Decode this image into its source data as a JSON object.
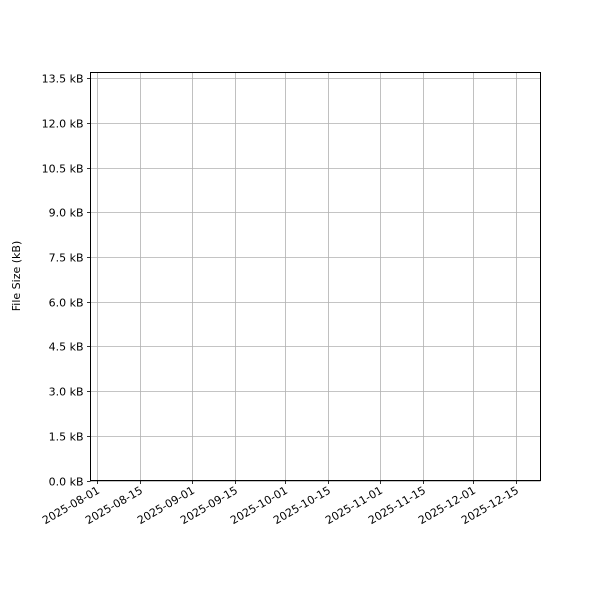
{
  "chart_data": {
    "type": "line",
    "title": "",
    "xlabel": "",
    "ylabel": "File Size (kB)",
    "x_type": "date",
    "xlim": [
      "2025-07-30",
      "2025-12-23"
    ],
    "ylim": [
      0,
      13.7
    ],
    "x_ticks": [
      "2025-08-01",
      "2025-08-15",
      "2025-09-01",
      "2025-09-15",
      "2025-10-01",
      "2025-10-15",
      "2025-11-01",
      "2025-11-15",
      "2025-12-01",
      "2025-12-15"
    ],
    "y_ticks": [
      0,
      1.5,
      3.0,
      4.5,
      6.0,
      7.5,
      9.0,
      10.5,
      12.0,
      13.5
    ],
    "y_tick_labels": [
      "0.0 kB",
      "1.5 kB",
      "3.0 kB",
      "4.5 kB",
      "6.0 kB",
      "7.5 kB",
      "9.0 kB",
      "10.5 kB",
      "12.0 kB",
      "13.5 kB"
    ],
    "grid": true,
    "series": [],
    "colors": {
      "grid": "#b0b0b0",
      "axes": "#000000"
    }
  }
}
